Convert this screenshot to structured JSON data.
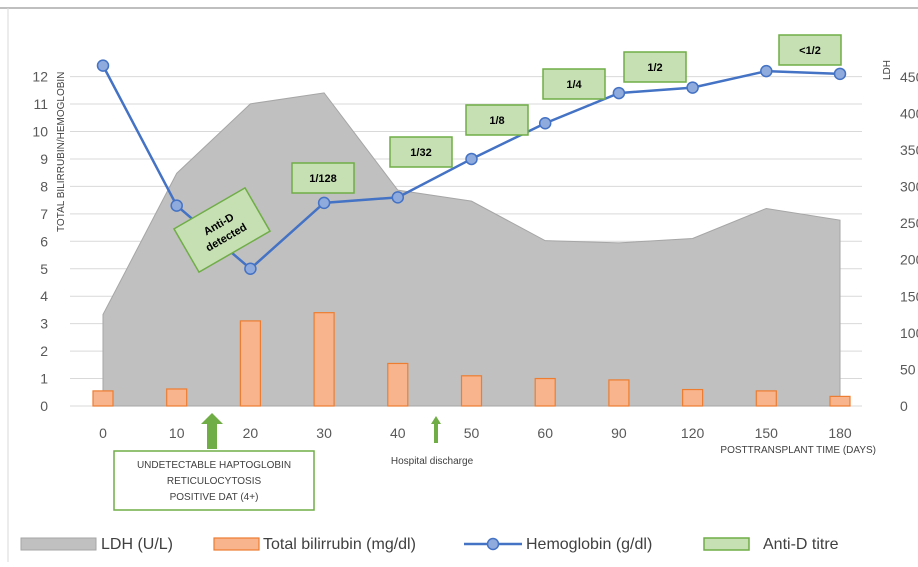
{
  "chart_data": {
    "type": "combo",
    "categories": [
      "0",
      "10",
      "20",
      "30",
      "40",
      "50",
      "60",
      "90",
      "120",
      "150",
      "180"
    ],
    "xlabel": "POSTTRANSPLANT TIME (DAYS)",
    "y_left_label": "TOTAL BILIRRUBIN/HEMOGLOBIN",
    "y_left_ticks": [
      "0",
      "1",
      "2",
      "3",
      "4",
      "5",
      "6",
      "7",
      "8",
      "9",
      "10",
      "11",
      "12"
    ],
    "y_left_range": [
      0,
      12.5
    ],
    "y_right_label": "LDH",
    "y_right_ticks": [
      "0",
      "50",
      "100",
      "150",
      "200",
      "250",
      "300",
      "350",
      "400",
      "450"
    ],
    "y_right_range": [
      0,
      469
    ],
    "grid": "horizontal",
    "legend_position": "bottom",
    "series": [
      {
        "name": "LDH (U/L)",
        "type": "area",
        "axis": "right",
        "color": "#c0c0c0",
        "values": [
          125,
          318,
          413,
          428,
          295,
          280,
          226,
          223,
          229,
          270,
          254
        ]
      },
      {
        "name": "Total bilirrubin (mg/dl)",
        "type": "bar",
        "axis": "left",
        "color": "#f8b48c",
        "values": [
          0.55,
          0.62,
          3.1,
          3.4,
          1.55,
          1.1,
          1.0,
          0.95,
          0.6,
          0.55,
          0.35
        ]
      },
      {
        "name": "Hemoglobin (g/dl)",
        "type": "line",
        "axis": "left",
        "color": "#4472c4",
        "values": [
          12.4,
          7.3,
          5.0,
          7.4,
          7.6,
          9.0,
          10.3,
          11.4,
          11.6,
          12.2,
          12.1
        ]
      }
    ],
    "anti_d_titre": {
      "name": "Anti-D titre",
      "labels": [
        {
          "text": "1/128",
          "category": "30"
        },
        {
          "text": "1/32",
          "category": "40"
        },
        {
          "text": "1/8",
          "category": "50"
        },
        {
          "text": "1/4",
          "category": "60"
        },
        {
          "text": "1/2",
          "category": "90"
        },
        {
          "text": "<1/2",
          "category": "150"
        }
      ]
    },
    "annotations": [
      {
        "text": [
          "Anti-D",
          "detected"
        ],
        "category": "10"
      },
      {
        "text": [
          "UNDETECTABLE HAPTOGLOBIN",
          "RETICULOCYTOSIS",
          "POSITIVE DAT (4+)"
        ],
        "category": "10"
      },
      {
        "text": [
          "Hospital discharge"
        ],
        "category": "40"
      }
    ]
  }
}
